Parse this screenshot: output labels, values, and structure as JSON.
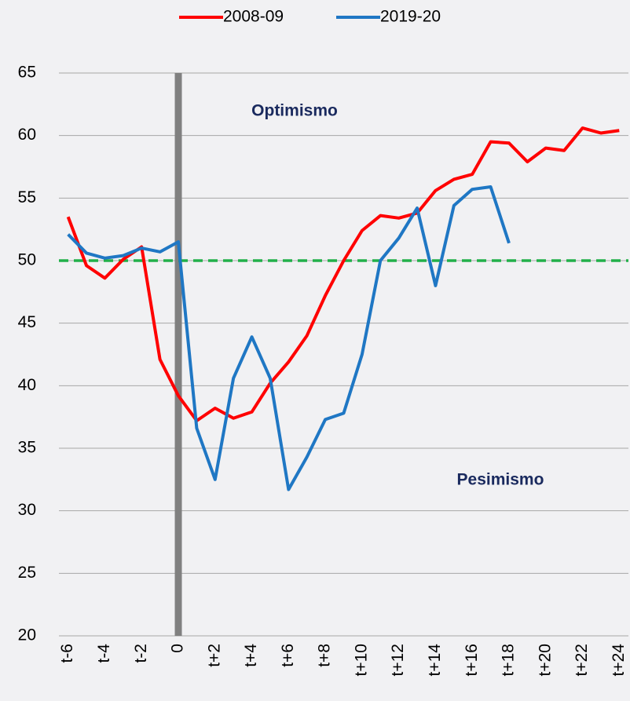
{
  "chart_data": {
    "type": "line",
    "categories": [
      "t-6",
      null,
      "t-4",
      null,
      "t-2",
      null,
      "0",
      null,
      "t+2",
      null,
      "t+4",
      null,
      "t+6",
      null,
      "t+8",
      null,
      "t+10",
      null,
      "t+12",
      null,
      "t+14",
      null,
      "t+16",
      null,
      "t+18",
      null,
      "t+20",
      null,
      "t+22",
      null,
      "t+24"
    ],
    "series": [
      {
        "name": "2008-09",
        "color": "#ff0000",
        "values": [
          53.5,
          49.6,
          48.6,
          50.1,
          51.1,
          42.1,
          39.2,
          37.2,
          38.2,
          37.4,
          37.9,
          40.2,
          41.9,
          44.0,
          47.2,
          50.0,
          52.4,
          53.6,
          53.4,
          53.8,
          55.6,
          56.5,
          56.9,
          59.5,
          59.4,
          57.9,
          59.0,
          58.8,
          60.6,
          60.2,
          60.4
        ]
      },
      {
        "name": "2019-20",
        "color": "#1f77c4",
        "values": [
          52.1,
          50.6,
          50.2,
          50.4,
          51.0,
          50.7,
          51.5,
          36.6,
          32.5,
          40.6,
          43.9,
          40.6,
          31.7,
          34.3,
          37.3,
          37.8,
          42.5,
          50.0,
          51.8,
          54.2,
          48.0,
          54.4,
          55.7,
          55.9,
          51.4,
          null,
          null,
          null,
          null,
          null,
          null
        ]
      }
    ],
    "ylim": [
      20,
      65
    ],
    "yticks": [
      20,
      25,
      30,
      35,
      40,
      45,
      50,
      55,
      60,
      65
    ],
    "grid": true,
    "reference_line": {
      "value": 50,
      "color": "#22b04a"
    },
    "vertical_line": {
      "category": "0",
      "color": "#808080"
    },
    "annotations": [
      "Optimismo",
      "Pesimismo"
    ],
    "legend": "top"
  }
}
